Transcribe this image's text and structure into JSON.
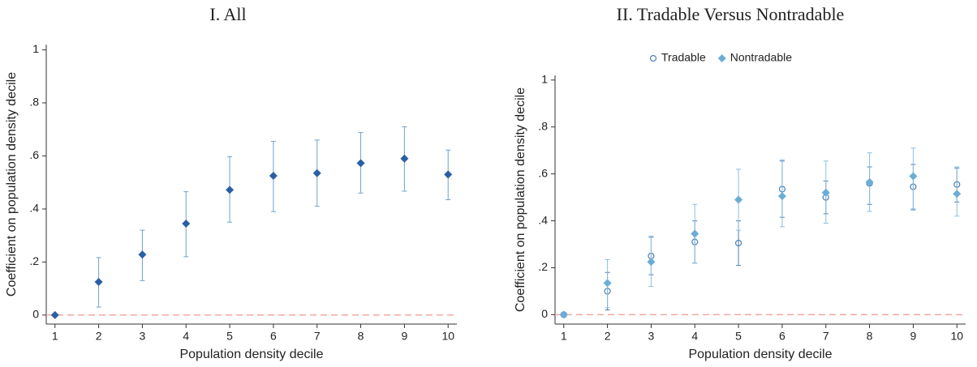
{
  "chart_data": [
    {
      "type": "scatter",
      "title": "I. All",
      "x_label": "Population density decile",
      "y_label": "Coefficient on population density decile",
      "x": [
        1,
        2,
        3,
        4,
        5,
        6,
        7,
        8,
        9,
        10
      ],
      "xlim": [
        0.8,
        10.2
      ],
      "xticks": [
        1,
        2,
        3,
        4,
        5,
        6,
        7,
        8,
        9,
        10
      ],
      "ylim": [
        -0.034,
        1.02
      ],
      "yticks": [
        0,
        {
          "value": 0.2,
          "label": ".2"
        },
        {
          "value": 0.4,
          "label": ".4"
        },
        {
          "value": 0.6,
          "label": ".6"
        },
        {
          "value": 0.8,
          "label": ".8"
        },
        1
      ],
      "hline": 0,
      "hline_color": "#f4a6a6",
      "series": [
        {
          "color": "#2a5fa5",
          "error_color": "#6fa3cc",
          "marker": "diamond",
          "values": [
            0,
            0.125,
            0.228,
            0.345,
            0.472,
            0.525,
            0.535,
            0.573,
            0.59,
            0.53
          ],
          "lower": [
            0,
            0.03,
            0.13,
            0.22,
            0.35,
            0.39,
            0.41,
            0.46,
            0.467,
            0.435
          ],
          "upper": [
            0,
            0.217,
            0.32,
            0.465,
            0.597,
            0.655,
            0.66,
            0.688,
            0.71,
            0.622
          ]
        }
      ]
    },
    {
      "type": "scatter",
      "title": "II. Tradable Versus Nontradable",
      "x_label": "Population density decile",
      "y_label": "Coefficient on population density decile",
      "x": [
        1,
        2,
        3,
        4,
        5,
        6,
        7,
        8,
        9,
        10
      ],
      "xlim": [
        0.8,
        10.2
      ],
      "xticks": [
        1,
        2,
        3,
        4,
        5,
        6,
        7,
        8,
        9,
        10
      ],
      "ylim": [
        -0.04,
        1.02
      ],
      "yticks": [
        0,
        {
          "value": 0.2,
          "label": ".2"
        },
        {
          "value": 0.4,
          "label": ".4"
        },
        {
          "value": 0.6,
          "label": ".6"
        },
        {
          "value": 0.8,
          "label": ".8"
        },
        1
      ],
      "hline": 0,
      "hline_color": "#f4a6a6",
      "legend": "top",
      "series": [
        {
          "name": "Tradable",
          "color": "#4c7fb5",
          "error_color": "#4c7fb5",
          "marker": "circle",
          "values": [
            0,
            0.1,
            0.25,
            0.31,
            0.305,
            0.535,
            0.5,
            0.56,
            0.545,
            0.555
          ],
          "lower": [
            0,
            0.02,
            0.17,
            0.22,
            0.21,
            0.415,
            0.43,
            0.47,
            0.45,
            0.48
          ],
          "upper": [
            0,
            0.18,
            0.33,
            0.4,
            0.4,
            0.655,
            0.57,
            0.63,
            0.64,
            0.625
          ]
        },
        {
          "name": "Nontradable",
          "color": "#6aaed6",
          "error_color": "#8cc0e0",
          "marker": "diamond",
          "values": [
            0,
            0.135,
            0.225,
            0.345,
            0.49,
            0.505,
            0.52,
            0.565,
            0.59,
            0.515
          ],
          "lower": [
            0,
            0.03,
            0.12,
            0.22,
            0.36,
            0.375,
            0.39,
            0.44,
            0.445,
            0.42
          ],
          "upper": [
            0,
            0.235,
            0.335,
            0.47,
            0.62,
            0.66,
            0.655,
            0.69,
            0.71,
            0.63
          ]
        }
      ]
    }
  ]
}
